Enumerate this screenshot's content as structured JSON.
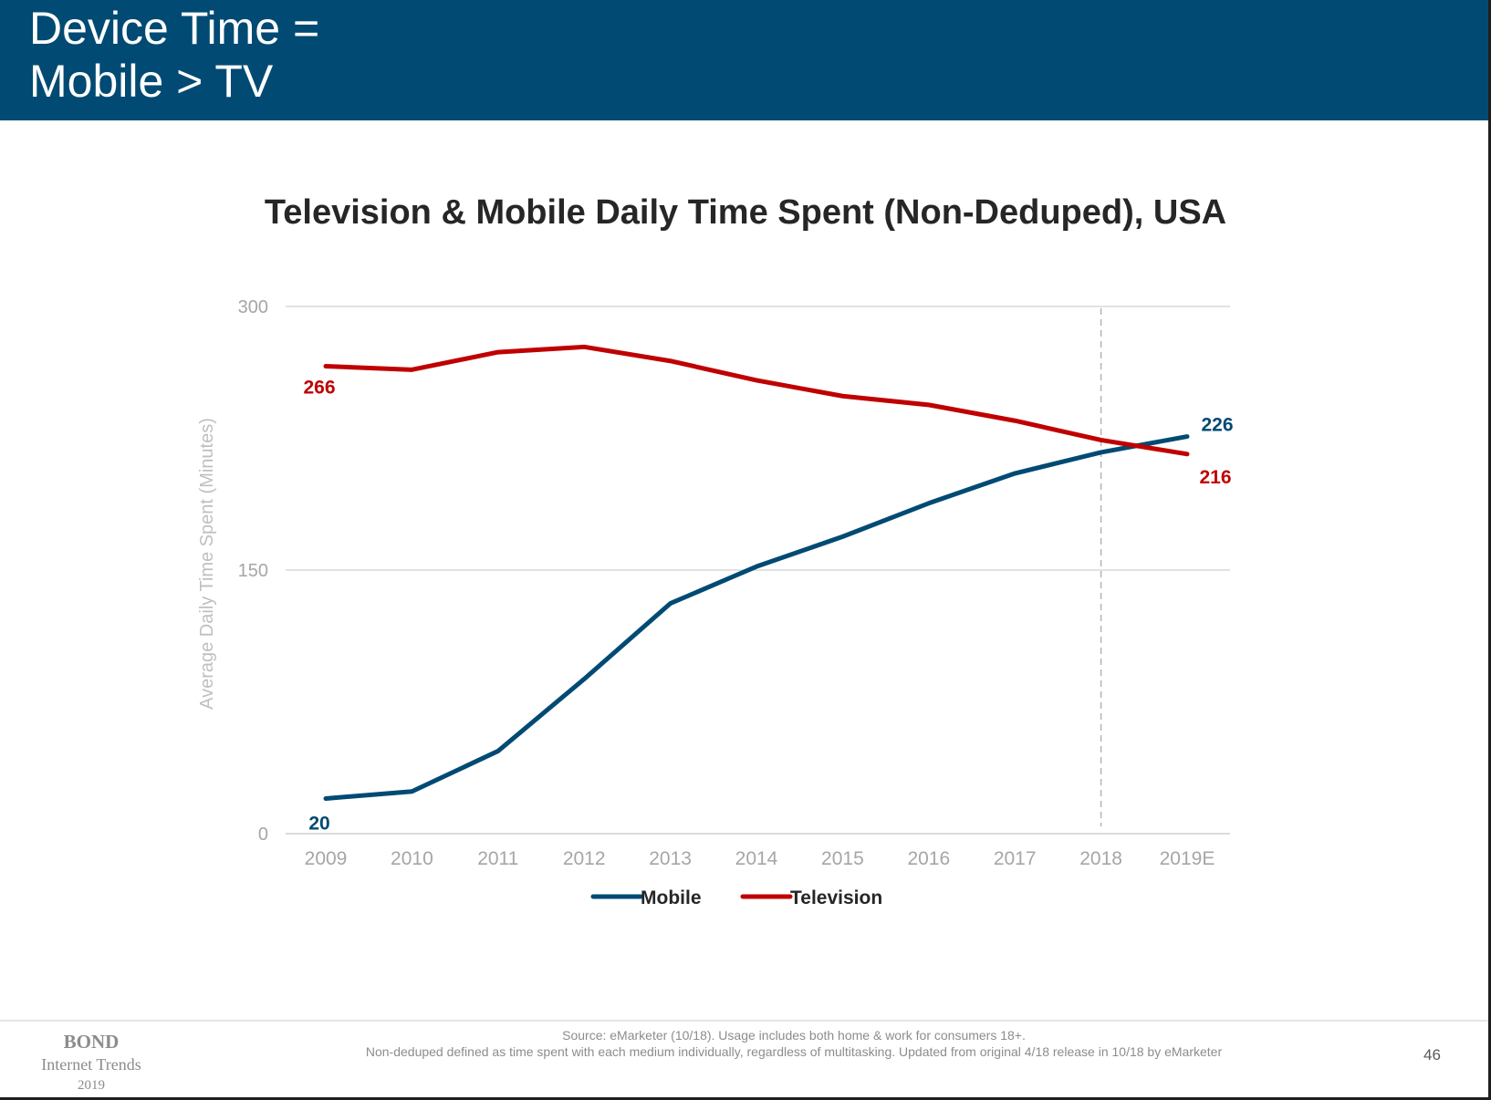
{
  "slide": {
    "title_line1": "Device Time =",
    "title_line2": "Mobile > TV",
    "header_color": "#004a73",
    "page_number": "46"
  },
  "brand": {
    "line1": "BOND",
    "line2": "Internet Trends",
    "line3": "2019"
  },
  "footer": {
    "source_line1": "Source: eMarketer (10/18). Usage includes both home & work for consumers 18+.",
    "source_line2": "Non-deduped defined as time spent with each medium individually, regardless of multitasking. Updated from original 4/18 release in 10/18 by eMarketer"
  },
  "chart_data": {
    "type": "line",
    "title": "Television & Mobile Daily Time Spent (Non-Deduped), USA",
    "xlabel": "",
    "ylabel": "Average Daily Time Spent (Minutes)",
    "categories": [
      "2009",
      "2010",
      "2011",
      "2012",
      "2013",
      "2014",
      "2015",
      "2016",
      "2017",
      "2018",
      "2019E"
    ],
    "ylim": [
      0,
      300
    ],
    "yticks": [
      "0",
      "150",
      "300"
    ],
    "grid": true,
    "legend": "bottom",
    "vertical_marker": "2018",
    "series": [
      {
        "name": "Mobile",
        "color": "#004a73",
        "values": [
          20,
          24,
          47,
          88,
          131,
          152,
          169,
          188,
          205,
          217,
          226
        ],
        "start_label": "20",
        "end_label": "226"
      },
      {
        "name": "Television",
        "color": "#c00000",
        "values": [
          266,
          264,
          274,
          277,
          269,
          258,
          249,
          244,
          235,
          224,
          216
        ],
        "start_label": "266",
        "end_label": "216"
      }
    ]
  }
}
